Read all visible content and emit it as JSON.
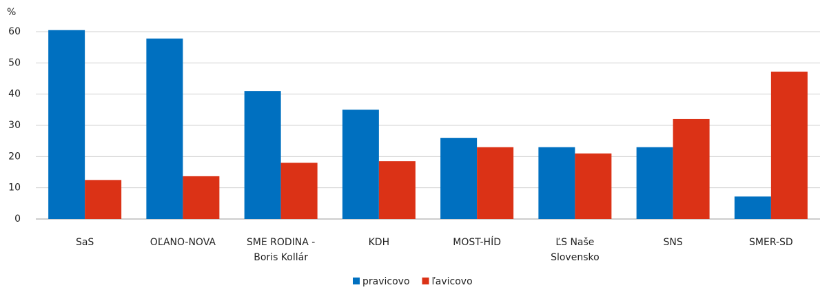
{
  "chart_data": {
    "type": "bar",
    "y_label": "%",
    "categories": [
      "SaS",
      "OĽANO-NOVA",
      "SME RODINA  -\nBoris Kollár",
      "KDH",
      "MOST-HÍD",
      "ĽS Naše\nSlovensko",
      "SNS",
      "SMER-SD"
    ],
    "series": [
      {
        "name": "pravicovo",
        "color": "#0070c0",
        "values": [
          60.5,
          57.8,
          41,
          35,
          26,
          23,
          23,
          7.2
        ]
      },
      {
        "name": "ľavicovo",
        "color": "#db3216",
        "values": [
          12.5,
          13.7,
          18,
          18.5,
          23,
          21,
          32,
          47.2
        ]
      }
    ],
    "ylim": [
      0,
      60
    ],
    "yticks": [
      0,
      10,
      20,
      30,
      40,
      50,
      60
    ],
    "grid": true,
    "legend": "bottom"
  }
}
